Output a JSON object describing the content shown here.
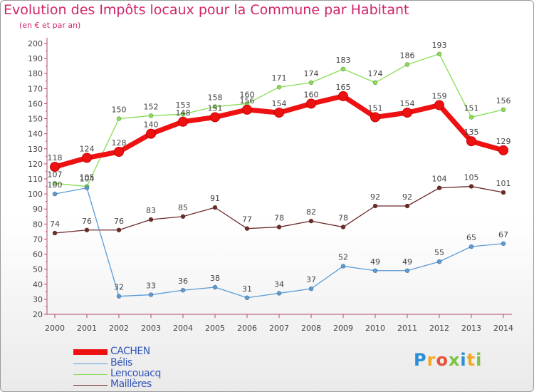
{
  "header": {
    "title": "Evolution des Impôts locaux pour la Commune par Habitant",
    "subtitle": "(en € et par an)"
  },
  "logo": {
    "text": "Proxiti"
  },
  "chart_data": {
    "type": "line",
    "title": "Evolution des Impôts locaux pour la Commune par Habitant",
    "subtitle": "(en € et par an)",
    "x": [
      2000,
      2001,
      2002,
      2003,
      2004,
      2005,
      2006,
      2007,
      2008,
      2009,
      2010,
      2011,
      2012,
      2013,
      2014
    ],
    "ylim": [
      20,
      200
    ],
    "yticks": [
      20,
      30,
      40,
      50,
      60,
      70,
      80,
      90,
      100,
      110,
      120,
      130,
      140,
      150,
      160,
      170,
      180,
      190,
      200
    ],
    "grid": false,
    "legend_position": "bottom-left",
    "series": [
      {
        "name": "CACHEN",
        "color": "#ee1111",
        "values": [
          118,
          124,
          128,
          140,
          148,
          151,
          156,
          154,
          160,
          165,
          151,
          154,
          159,
          135,
          129
        ]
      },
      {
        "name": "Bélis",
        "color": "#5a9bd5",
        "values": [
          100,
          104,
          32,
          33,
          36,
          38,
          31,
          34,
          37,
          52,
          49,
          49,
          55,
          65,
          67
        ]
      },
      {
        "name": "Lencouacq",
        "color": "#88dd55",
        "values": [
          107,
          105,
          150,
          152,
          153,
          158,
          160,
          171,
          174,
          183,
          174,
          186,
          193,
          151,
          156
        ]
      },
      {
        "name": "Maillères",
        "color": "#6e2a2a",
        "values": [
          74,
          76,
          76,
          83,
          85,
          91,
          77,
          78,
          82,
          78,
          92,
          92,
          104,
          105,
          101
        ]
      }
    ]
  }
}
